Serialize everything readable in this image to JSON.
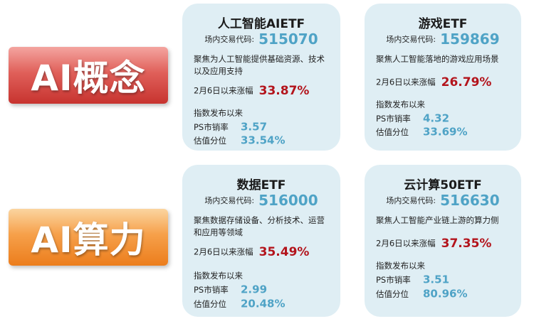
{
  "categories": {
    "top": "AI概念",
    "bottom": "AI算力"
  },
  "common": {
    "code_label": "场内交易代码:",
    "change_label": "2月6日以来涨幅",
    "since_label": "指数发布以来",
    "ps_label": "PS市销率",
    "val_label": "估值分位"
  },
  "cards": [
    {
      "title": "人工智能AIETF",
      "code": "515070",
      "description": "聚焦为人工智能提供基础资源、技术以及应用支持",
      "change": "33.87%",
      "ps": "3.57",
      "valuation": "33.54%"
    },
    {
      "title": "游戏ETF",
      "code": "159869",
      "description": "聚焦人工智能落地的游戏应用场景",
      "change": "26.79%",
      "ps": "4.32",
      "valuation": "33.69%"
    },
    {
      "title": "数据ETF",
      "code": "516000",
      "description": "聚焦数据存储设备、分析技术、运营和应用等领域",
      "change": "35.49%",
      "ps": "2.99",
      "valuation": "20.48%"
    },
    {
      "title": "云计算50ETF",
      "code": "516630",
      "description": "聚焦人工智能产业链上游的算力侧",
      "change": "37.35%",
      "ps": "3.51",
      "valuation": "80.96%"
    }
  ]
}
